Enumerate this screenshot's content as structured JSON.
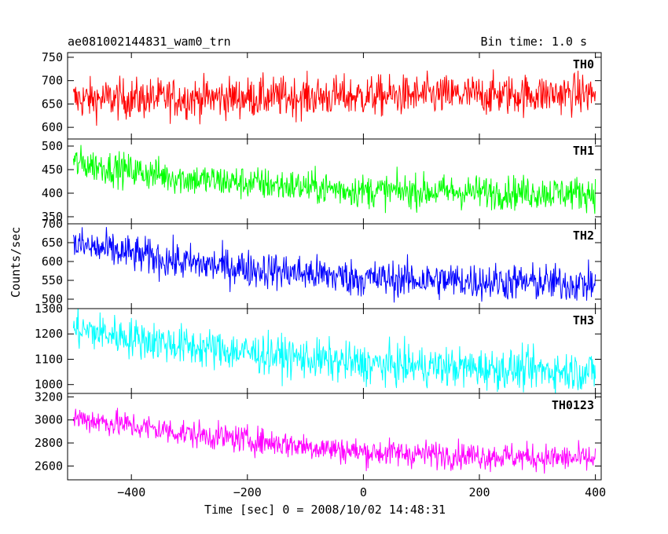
{
  "header": {
    "title": "ae081002144831_wam0_trn",
    "bin_time": "Bin time: 1.0 s"
  },
  "xaxis": {
    "label": "Time [sec] 0 = 2008/10/02 14:48:31",
    "range": [
      -510,
      410
    ],
    "ticks": [
      -400,
      -200,
      0,
      200,
      400
    ],
    "tick_labels": [
      "−400",
      "−200",
      "0",
      "200",
      "400"
    ]
  },
  "yaxis": {
    "label": "Counts/sec"
  },
  "chart_data": [
    {
      "type": "line",
      "series": [
        {
          "name": "TH0",
          "trend": [
            [
              -500,
              660
            ],
            [
              400,
              672
            ]
          ],
          "noise_sd": 22
        }
      ],
      "ylim": [
        575,
        760
      ],
      "yticks": [
        600,
        650,
        700,
        750
      ],
      "color": "#ff0000"
    },
    {
      "type": "line",
      "series": [
        {
          "name": "TH1",
          "trend": [
            [
              -500,
              465
            ],
            [
              -300,
              430
            ],
            [
              0,
              405
            ],
            [
              400,
              400
            ]
          ],
          "noise_sd": 18
        }
      ],
      "ylim": [
        335,
        515
      ],
      "yticks": [
        350,
        400,
        450,
        500
      ],
      "color": "#00ff00"
    },
    {
      "type": "line",
      "series": [
        {
          "name": "TH2",
          "trend": [
            [
              -500,
              645
            ],
            [
              -300,
              595
            ],
            [
              0,
              555
            ],
            [
              400,
              540
            ]
          ],
          "noise_sd": 25
        }
      ],
      "ylim": [
        475,
        700
      ],
      "yticks": [
        500,
        550,
        600,
        650,
        700
      ],
      "color": "#0000ff"
    },
    {
      "type": "line",
      "series": [
        {
          "name": "TH3",
          "trend": [
            [
              -500,
              1220
            ],
            [
              -300,
              1150
            ],
            [
              0,
              1080
            ],
            [
              400,
              1050
            ]
          ],
          "noise_sd": 40
        }
      ],
      "ylim": [
        965,
        1300
      ],
      "yticks": [
        1000,
        1100,
        1200,
        1300
      ],
      "color": "#00ffff"
    },
    {
      "type": "line",
      "series": [
        {
          "name": "TH0123",
          "trend": [
            [
              -500,
              3020
            ],
            [
              -300,
              2880
            ],
            [
              0,
              2720
            ],
            [
              400,
              2660
            ]
          ],
          "noise_sd": 60
        }
      ],
      "ylim": [
        2480,
        3230
      ],
      "yticks": [
        2600,
        2800,
        3000,
        3200
      ],
      "color": "#ff00ff"
    }
  ]
}
